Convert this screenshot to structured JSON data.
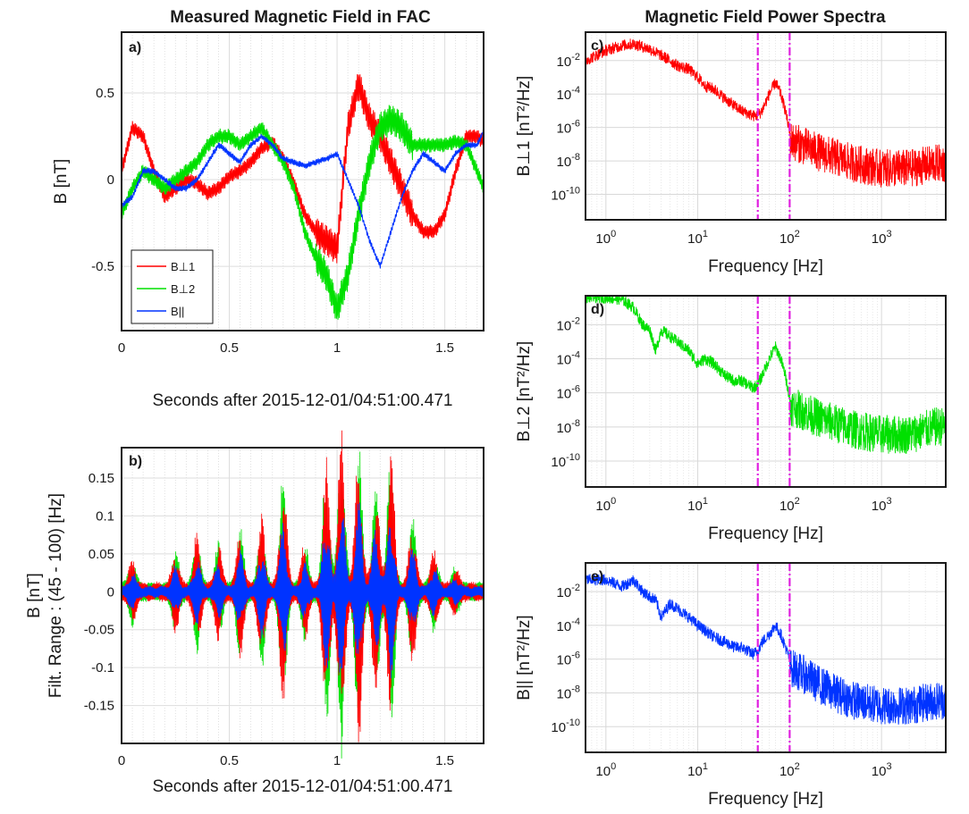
{
  "titles": {
    "left": "Measured Magnetic Field in FAC",
    "right": "Magnetic Field Power Spectra"
  },
  "colors": {
    "perp1": "#ff0000",
    "perp2": "#00e000",
    "par": "#0033ff",
    "markers": "#e020e0"
  },
  "chart_data": [
    {
      "panel": "a)",
      "type": "line",
      "xlabel": "Seconds after 2015-12-01/04:51:00.471",
      "ylabel": "B [nT]",
      "xlim": [
        0,
        1.68
      ],
      "ylim": [
        -0.87,
        0.85
      ],
      "xticks": [
        0,
        0.5,
        1,
        1.5
      ],
      "xticklabels": [
        "0",
        "0.5",
        "1",
        "1.5"
      ],
      "yticks": [
        -0.5,
        0,
        0.5
      ],
      "yticklabels": [
        "-0.5",
        "0",
        "0.5"
      ],
      "grid": true,
      "legend": {
        "placement": "bottom-left",
        "entries": [
          "B⊥1",
          "B⊥2",
          "B||"
        ]
      },
      "series": [
        {
          "name": "B⊥1",
          "x": [
            0,
            0.05,
            0.1,
            0.15,
            0.2,
            0.25,
            0.3,
            0.35,
            0.4,
            0.45,
            0.5,
            0.55,
            0.6,
            0.65,
            0.7,
            0.75,
            0.8,
            0.85,
            0.9,
            0.95,
            1,
            1.05,
            1.1,
            1.15,
            1.2,
            1.25,
            1.3,
            1.35,
            1.4,
            1.45,
            1.5,
            1.55,
            1.6,
            1.65,
            1.68
          ],
          "y": [
            0.05,
            0.3,
            0.25,
            0.05,
            -0.1,
            -0.05,
            0.0,
            -0.02,
            -0.08,
            -0.05,
            0.02,
            0.05,
            0.1,
            0.18,
            0.22,
            0.12,
            -0.02,
            -0.2,
            -0.3,
            -0.35,
            -0.4,
            0.3,
            0.55,
            0.35,
            0.25,
            0.1,
            -0.05,
            -0.2,
            -0.3,
            -0.3,
            -0.2,
            0.05,
            0.25,
            0.25,
            0.22
          ]
        },
        {
          "name": "B⊥2",
          "x": [
            0,
            0.05,
            0.1,
            0.15,
            0.2,
            0.25,
            0.3,
            0.35,
            0.4,
            0.45,
            0.5,
            0.55,
            0.6,
            0.65,
            0.7,
            0.75,
            0.8,
            0.85,
            0.9,
            0.95,
            1,
            1.05,
            1.1,
            1.15,
            1.2,
            1.25,
            1.3,
            1.35,
            1.4,
            1.45,
            1.5,
            1.55,
            1.6,
            1.65,
            1.68
          ],
          "y": [
            -0.2,
            -0.05,
            0.05,
            0.0,
            -0.05,
            0.0,
            0.05,
            0.1,
            0.2,
            0.25,
            0.25,
            0.2,
            0.25,
            0.3,
            0.2,
            0.1,
            -0.05,
            -0.3,
            -0.45,
            -0.55,
            -0.75,
            -0.55,
            -0.2,
            0.1,
            0.3,
            0.35,
            0.3,
            0.2,
            0.2,
            0.2,
            0.2,
            0.22,
            0.2,
            0.05,
            -0.05
          ]
        },
        {
          "name": "B||",
          "x": [
            0,
            0.05,
            0.1,
            0.15,
            0.2,
            0.25,
            0.3,
            0.35,
            0.4,
            0.45,
            0.5,
            0.55,
            0.6,
            0.65,
            0.7,
            0.75,
            0.8,
            0.85,
            0.9,
            0.95,
            1,
            1.05,
            1.1,
            1.15,
            1.2,
            1.25,
            1.3,
            1.35,
            1.4,
            1.45,
            1.5,
            1.55,
            1.6,
            1.65,
            1.68
          ],
          "y": [
            -0.15,
            -0.1,
            0.05,
            0.05,
            0.0,
            -0.05,
            -0.05,
            0.0,
            0.1,
            0.2,
            0.15,
            0.1,
            0.2,
            0.25,
            0.2,
            0.12,
            0.1,
            0.08,
            0.1,
            0.12,
            0.15,
            0.0,
            -0.15,
            -0.35,
            -0.5,
            -0.3,
            -0.1,
            0.05,
            0.15,
            0.1,
            0.05,
            0.15,
            0.2,
            0.2,
            0.28
          ]
        }
      ]
    },
    {
      "panel": "b)",
      "type": "line",
      "xlabel": "Seconds after 2015-12-01/04:51:00.471",
      "ylabel": "B [nT]",
      "ylabel2": "Filt. Range : (45 - 100) [Hz]",
      "xlim": [
        0,
        1.68
      ],
      "ylim": [
        -0.2,
        0.19
      ],
      "xticks": [
        0,
        0.5,
        1,
        1.5
      ],
      "xticklabels": [
        "0",
        "0.5",
        "1",
        "1.5"
      ],
      "yticks": [
        -0.15,
        -0.1,
        -0.05,
        0,
        0.05,
        0.1,
        0.15
      ],
      "yticklabels": [
        "-0.15",
        "-0.1",
        "-0.05",
        "0",
        "0.05",
        "0.1",
        "0.15"
      ],
      "grid": true,
      "bursts": [
        {
          "t": 0.05,
          "amp": 0.03
        },
        {
          "t": 0.25,
          "amp": 0.04
        },
        {
          "t": 0.35,
          "amp": 0.06
        },
        {
          "t": 0.45,
          "amp": 0.05
        },
        {
          "t": 0.55,
          "amp": 0.07
        },
        {
          "t": 0.65,
          "amp": 0.08
        },
        {
          "t": 0.75,
          "amp": 0.13
        },
        {
          "t": 0.85,
          "amp": 0.05
        },
        {
          "t": 0.95,
          "amp": 0.15
        },
        {
          "t": 1.02,
          "amp": 0.18
        },
        {
          "t": 1.1,
          "amp": 0.17
        },
        {
          "t": 1.18,
          "amp": 0.12
        },
        {
          "t": 1.25,
          "amp": 0.16
        },
        {
          "t": 1.35,
          "amp": 0.08
        },
        {
          "t": 1.45,
          "amp": 0.04
        },
        {
          "t": 1.55,
          "amp": 0.02
        }
      ]
    },
    {
      "panel": "c)",
      "type": "line",
      "xlabel": "Frequency [Hz]",
      "ylabel": "B⊥1 [nT²/Hz]",
      "xscale": "log",
      "yscale": "log",
      "xlim": [
        0.6,
        5000
      ],
      "ylim": [
        3e-12,
        0.5
      ],
      "xticks": [
        1,
        10,
        100,
        1000
      ],
      "xticklabels": [
        "10^0",
        "10^1",
        "10^2",
        "10^3"
      ],
      "yticks": [
        1e-10,
        1e-08,
        1e-06,
        0.0001,
        0.01
      ],
      "yticklabels": [
        "10^-10",
        "10^-8",
        "10^-6",
        "10^-4",
        "10^-2"
      ],
      "grid": true,
      "vlines": [
        45,
        100
      ],
      "spectrum": {
        "f": [
          0.6,
          1,
          1.5,
          2,
          3,
          4,
          5,
          6,
          8,
          10,
          12,
          15,
          20,
          25,
          30,
          40,
          45,
          50,
          60,
          70,
          80,
          90,
          100,
          150,
          200,
          300,
          500,
          1000,
          2000,
          4000
        ],
        "p": [
          0.01,
          0.04,
          0.08,
          0.1,
          0.05,
          0.02,
          0.01,
          0.005,
          0.003,
          0.001,
          0.0003,
          0.0002,
          5e-05,
          2e-05,
          1e-05,
          5e-06,
          5e-06,
          1e-05,
          0.0001,
          0.0005,
          0.0001,
          1e-05,
          5e-07,
          2e-07,
          1e-07,
          5e-08,
          2e-08,
          1e-08,
          1e-08,
          2e-08
        ]
      }
    },
    {
      "panel": "d)",
      "type": "line",
      "xlabel": "Frequency [Hz]",
      "ylabel": "B⊥2 [nT²/Hz]",
      "xscale": "log",
      "yscale": "log",
      "xlim": [
        0.6,
        5000
      ],
      "ylim": [
        3e-12,
        0.5
      ],
      "xticks": [
        1,
        10,
        100,
        1000
      ],
      "xticklabels": [
        "10^0",
        "10^1",
        "10^2",
        "10^3"
      ],
      "yticks": [
        1e-10,
        1e-08,
        1e-06,
        0.0001,
        0.01
      ],
      "yticklabels": [
        "10^-10",
        "10^-8",
        "10^-6",
        "10^-4",
        "10^-2"
      ],
      "grid": true,
      "vlines": [
        45,
        100
      ],
      "spectrum": {
        "f": [
          0.6,
          1,
          1.5,
          2,
          2.5,
          3,
          3.5,
          4,
          5,
          6,
          8,
          10,
          12,
          15,
          20,
          25,
          30,
          40,
          45,
          50,
          60,
          70,
          80,
          90,
          100,
          150,
          200,
          300,
          500,
          1000,
          2000,
          4000
        ],
        "p": [
          0.4,
          0.4,
          0.3,
          0.1,
          0.01,
          0.005,
          0.0003,
          0.005,
          0.002,
          0.001,
          0.0003,
          5e-05,
          0.0001,
          5e-05,
          1e-05,
          5e-06,
          5e-06,
          2e-06,
          3e-06,
          1e-05,
          0.0001,
          0.0005,
          0.0001,
          1e-05,
          5e-07,
          2e-07,
          1e-07,
          5e-08,
          2e-08,
          1e-08,
          1e-08,
          3e-08
        ]
      }
    },
    {
      "panel": "e)",
      "type": "line",
      "xlabel": "Frequency [Hz]",
      "ylabel": "B|| [nT²/Hz]",
      "xscale": "log",
      "yscale": "log",
      "xlim": [
        0.6,
        5000
      ],
      "ylim": [
        3e-12,
        0.5
      ],
      "xticks": [
        1,
        10,
        100,
        1000
      ],
      "xticklabels": [
        "10^0",
        "10^1",
        "10^2",
        "10^3"
      ],
      "yticks": [
        1e-10,
        1e-08,
        1e-06,
        0.0001,
        0.01
      ],
      "yticklabels": [
        "10^-10",
        "10^-8",
        "10^-6",
        "10^-4",
        "10^-2"
      ],
      "grid": true,
      "vlines": [
        45,
        100
      ],
      "spectrum": {
        "f": [
          0.6,
          1,
          1.5,
          2,
          2.5,
          3,
          3.5,
          4,
          5,
          6,
          8,
          10,
          12,
          15,
          20,
          25,
          30,
          40,
          45,
          50,
          60,
          70,
          80,
          90,
          100,
          150,
          200,
          300,
          500,
          1000,
          2000,
          4000
        ],
        "p": [
          0.05,
          0.05,
          0.02,
          0.05,
          0.01,
          0.005,
          0.003,
          0.0003,
          0.002,
          0.001,
          0.0003,
          0.0001,
          5e-05,
          2e-05,
          1e-05,
          5e-06,
          5e-06,
          2e-06,
          3e-06,
          1e-05,
          3e-05,
          0.0001,
          3e-05,
          5e-06,
          1e-06,
          3e-07,
          1e-07,
          3e-08,
          1e-08,
          5e-09,
          5e-09,
          1e-08
        ]
      }
    }
  ]
}
